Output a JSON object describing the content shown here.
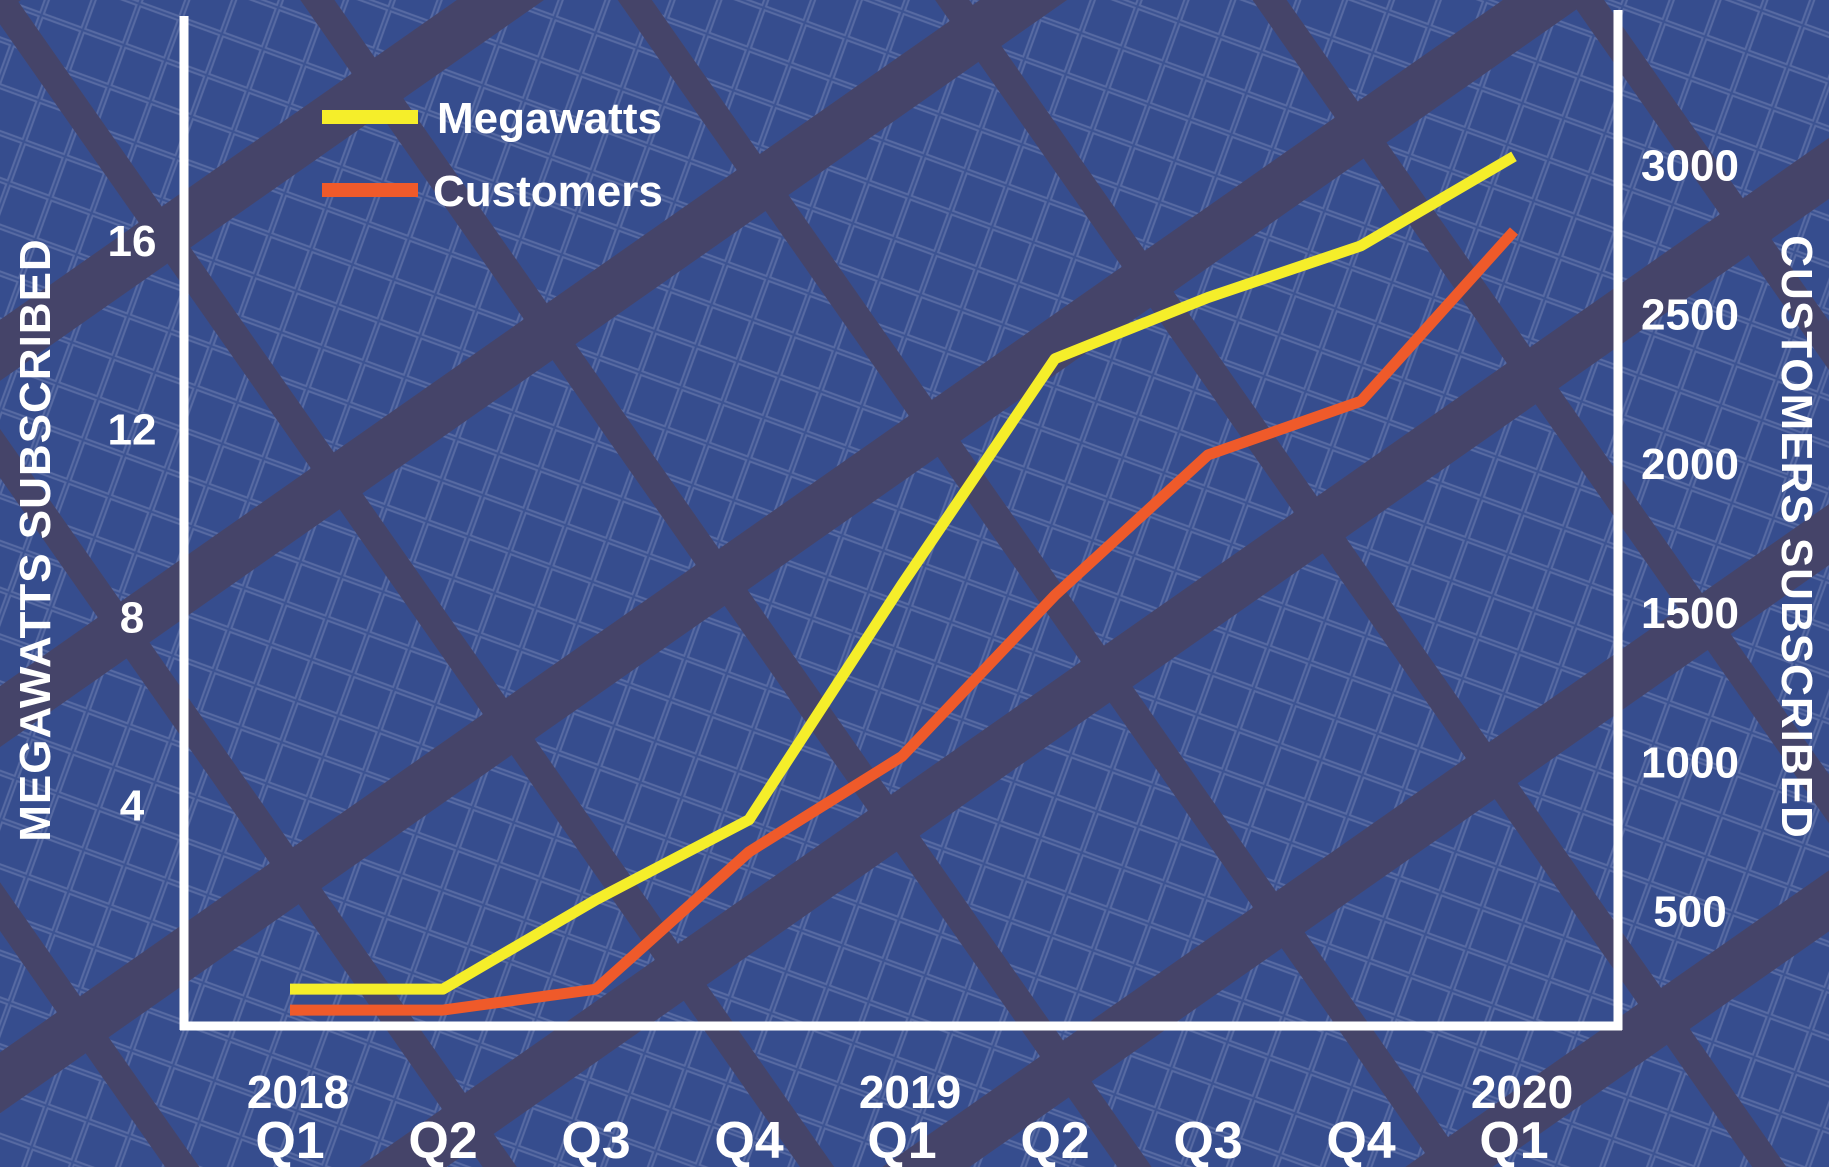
{
  "chart_data": {
    "type": "line",
    "categories": [
      "Q1",
      "Q2",
      "Q3",
      "Q4",
      "Q1",
      "Q2",
      "Q3",
      "Q4",
      "Q1"
    ],
    "year_labels": [
      "2018",
      "",
      "",
      "",
      "2019",
      "",
      "",
      "",
      "2020"
    ],
    "series": [
      {
        "name": "Megawatts",
        "axis": "left",
        "color": "#f5ee2a",
        "values": [
          0.1,
          0.1,
          2.0,
          3.7,
          8.7,
          13.5,
          14.8,
          15.9,
          17.8
        ]
      },
      {
        "name": "Customers",
        "axis": "right",
        "color": "#ef5a2a",
        "values": [
          170,
          170,
          240,
          700,
          1020,
          1560,
          2030,
          2210,
          2780
        ]
      }
    ],
    "y_left": {
      "label": "MEGAWATTS SUBSCRIBED",
      "ticks": [
        4,
        8,
        12,
        16
      ],
      "lim": [
        -0.6,
        20.7
      ]
    },
    "y_right": {
      "label": "CUSTOMERS SUBSCRIBED",
      "ticks": [
        500,
        1000,
        1500,
        2000,
        2500,
        3000
      ],
      "lim": [
        130,
        3487
      ]
    },
    "legend": {
      "position": "top-left"
    },
    "grid": false
  },
  "colors": {
    "axis": "#ffffff",
    "background": "#3a4f86",
    "panel_overlay": "#5a6ea8"
  }
}
